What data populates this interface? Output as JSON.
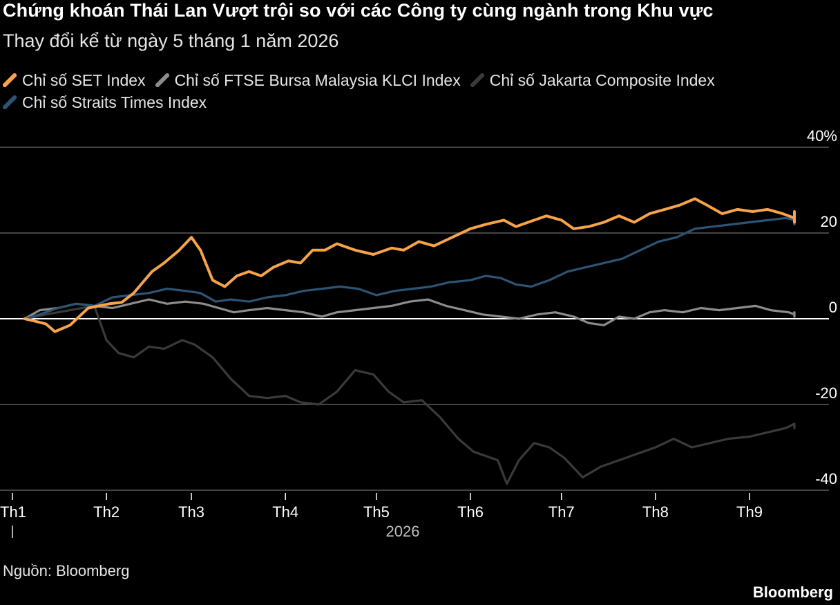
{
  "title": "Chứng khoán Thái Lan Vượt trội so với các Công ty cùng ngành trong Khu vực",
  "subtitle": "Thay đổi kể từ ngày 5 tháng 1 năm 2026",
  "source": "Nguồn: Bloomberg",
  "brand": "Bloomberg",
  "colors": {
    "background": "#000000",
    "grid": "#5c5c5c",
    "zero_line": "#ffffff",
    "text": "#e6e6e6"
  },
  "chart_data": {
    "type": "line",
    "xlabel": "2026",
    "ylabel": "",
    "ylim": [
      -40,
      40
    ],
    "y_ticks": [
      40,
      20,
      0,
      -20,
      -40
    ],
    "y_tick_labels": [
      "40%",
      "20",
      "0",
      "-20",
      "-40"
    ],
    "x_ticks": [
      "Th1",
      "Th2",
      "Th3",
      "Th4",
      "Th5",
      "Th6",
      "Th7",
      "Th8",
      "Th9"
    ],
    "x_tick_dates": [
      "2026-01-01",
      "2026-02-01",
      "2026-03-01",
      "2026-04-01",
      "2026-05-01",
      "2026-06-01",
      "2026-07-01",
      "2026-08-01",
      "2026-09-01"
    ],
    "xlim": [
      "2026-01-01",
      "2026-09-30"
    ],
    "grid": true,
    "legend_position": "top-left",
    "series": [
      {
        "name": "Chỉ số SET Index",
        "color": "#f6a34a",
        "points": [
          [
            "2026-01-05",
            0
          ],
          [
            "2026-01-08",
            -0.5
          ],
          [
            "2026-01-12",
            -1.2
          ],
          [
            "2026-01-15",
            -3
          ],
          [
            "2026-01-20",
            -1.5
          ],
          [
            "2026-01-26",
            2.5
          ],
          [
            "2026-02-02",
            3.5
          ],
          [
            "2026-02-06",
            3.8
          ],
          [
            "2026-02-10",
            6
          ],
          [
            "2026-02-16",
            11
          ],
          [
            "2026-02-20",
            13
          ],
          [
            "2026-02-25",
            16
          ],
          [
            "2026-03-01",
            19
          ],
          [
            "2026-03-04",
            16
          ],
          [
            "2026-03-08",
            9
          ],
          [
            "2026-03-12",
            7.5
          ],
          [
            "2026-03-16",
            10
          ],
          [
            "2026-03-20",
            11
          ],
          [
            "2026-03-24",
            10
          ],
          [
            "2026-03-28",
            12
          ],
          [
            "2026-04-02",
            13.5
          ],
          [
            "2026-04-06",
            13
          ],
          [
            "2026-04-10",
            16
          ],
          [
            "2026-04-14",
            16
          ],
          [
            "2026-04-18",
            17.5
          ],
          [
            "2026-04-24",
            16
          ],
          [
            "2026-04-30",
            15
          ],
          [
            "2026-05-06",
            16.5
          ],
          [
            "2026-05-10",
            16
          ],
          [
            "2026-05-15",
            18
          ],
          [
            "2026-05-20",
            17
          ],
          [
            "2026-05-26",
            19
          ],
          [
            "2026-06-01",
            21
          ],
          [
            "2026-06-06",
            22
          ],
          [
            "2026-06-12",
            23
          ],
          [
            "2026-06-16",
            21.5
          ],
          [
            "2026-06-20",
            22.5
          ],
          [
            "2026-06-26",
            24
          ],
          [
            "2026-07-01",
            23
          ],
          [
            "2026-07-05",
            21
          ],
          [
            "2026-07-10",
            21.5
          ],
          [
            "2026-07-15",
            22.5
          ],
          [
            "2026-07-20",
            24
          ],
          [
            "2026-07-25",
            22.5
          ],
          [
            "2026-07-30",
            24.5
          ],
          [
            "2026-08-04",
            25.5
          ],
          [
            "2026-08-09",
            26.5
          ],
          [
            "2026-08-14",
            28
          ],
          [
            "2026-08-18",
            26.5
          ],
          [
            "2026-08-23",
            24.5
          ],
          [
            "2026-08-28",
            25.5
          ],
          [
            "2026-09-02",
            25
          ],
          [
            "2026-09-07",
            25.5
          ],
          [
            "2026-09-12",
            24.5
          ],
          [
            "2026-09-17",
            23.5
          ],
          [
            "2026-09-20",
            22.5
          ],
          [
            "2026-09-23",
            25
          ],
          [
            "2026-09-27",
            24.5
          ],
          [
            "2026-09-30",
            23
          ]
        ]
      },
      {
        "name": "Chỉ số FTSE Bursa Malaysia KLCI Index",
        "color": "#8c8c8c",
        "points": [
          [
            "2026-01-05",
            0
          ],
          [
            "2026-01-10",
            2
          ],
          [
            "2026-01-16",
            2.5
          ],
          [
            "2026-01-22",
            3.5
          ],
          [
            "2026-01-28",
            3
          ],
          [
            "2026-02-03",
            2.5
          ],
          [
            "2026-02-09",
            3.5
          ],
          [
            "2026-02-15",
            4.5
          ],
          [
            "2026-02-21",
            3.5
          ],
          [
            "2026-02-27",
            4
          ],
          [
            "2026-03-05",
            3.5
          ],
          [
            "2026-03-10",
            2.5
          ],
          [
            "2026-03-15",
            1.5
          ],
          [
            "2026-03-20",
            2
          ],
          [
            "2026-03-26",
            2.5
          ],
          [
            "2026-04-01",
            2
          ],
          [
            "2026-04-07",
            1.5
          ],
          [
            "2026-04-13",
            0.5
          ],
          [
            "2026-04-18",
            1.5
          ],
          [
            "2026-04-24",
            2
          ],
          [
            "2026-04-30",
            2.5
          ],
          [
            "2026-05-06",
            3
          ],
          [
            "2026-05-12",
            4
          ],
          [
            "2026-05-18",
            4.5
          ],
          [
            "2026-05-24",
            3
          ],
          [
            "2026-05-30",
            2
          ],
          [
            "2026-06-05",
            1
          ],
          [
            "2026-06-11",
            0.5
          ],
          [
            "2026-06-17",
            0
          ],
          [
            "2026-06-23",
            1
          ],
          [
            "2026-06-29",
            1.5
          ],
          [
            "2026-07-05",
            0.5
          ],
          [
            "2026-07-10",
            -1
          ],
          [
            "2026-07-15",
            -1.5
          ],
          [
            "2026-07-20",
            0.5
          ],
          [
            "2026-07-25",
            0
          ],
          [
            "2026-07-30",
            1.5
          ],
          [
            "2026-08-04",
            2
          ],
          [
            "2026-08-10",
            1.5
          ],
          [
            "2026-08-16",
            2.5
          ],
          [
            "2026-08-22",
            2
          ],
          [
            "2026-08-28",
            2.5
          ],
          [
            "2026-09-03",
            3
          ],
          [
            "2026-09-08",
            2
          ],
          [
            "2026-09-14",
            1.5
          ],
          [
            "2026-09-20",
            1
          ],
          [
            "2026-09-25",
            1.5
          ],
          [
            "2026-09-30",
            0.5
          ]
        ]
      },
      {
        "name": "Chỉ số Jakarta Composite Index",
        "color": "#3a3a3a",
        "points": [
          [
            "2026-01-05",
            0
          ],
          [
            "2026-01-12",
            1
          ],
          [
            "2026-01-20",
            2
          ],
          [
            "2026-01-28",
            3
          ],
          [
            "2026-02-01",
            -5
          ],
          [
            "2026-02-05",
            -8
          ],
          [
            "2026-02-10",
            -9
          ],
          [
            "2026-02-15",
            -6.5
          ],
          [
            "2026-02-20",
            -7
          ],
          [
            "2026-02-26",
            -5
          ],
          [
            "2026-03-02",
            -6
          ],
          [
            "2026-03-08",
            -9
          ],
          [
            "2026-03-14",
            -14
          ],
          [
            "2026-03-20",
            -18
          ],
          [
            "2026-03-26",
            -18.5
          ],
          [
            "2026-04-01",
            -18
          ],
          [
            "2026-04-06",
            -19.5
          ],
          [
            "2026-04-12",
            -20
          ],
          [
            "2026-04-18",
            -17
          ],
          [
            "2026-04-24",
            -12
          ],
          [
            "2026-04-30",
            -13
          ],
          [
            "2026-05-05",
            -17
          ],
          [
            "2026-05-10",
            -19.5
          ],
          [
            "2026-05-16",
            -19
          ],
          [
            "2026-05-22",
            -23
          ],
          [
            "2026-05-28",
            -28
          ],
          [
            "2026-06-02",
            -31
          ],
          [
            "2026-06-06",
            -32
          ],
          [
            "2026-06-10",
            -33
          ],
          [
            "2026-06-13",
            -38.5
          ],
          [
            "2026-06-17",
            -33
          ],
          [
            "2026-06-22",
            -29
          ],
          [
            "2026-06-27",
            -30
          ],
          [
            "2026-07-02",
            -32.5
          ],
          [
            "2026-07-08",
            -37
          ],
          [
            "2026-07-14",
            -34.5
          ],
          [
            "2026-07-20",
            -33
          ],
          [
            "2026-07-26",
            -31.5
          ],
          [
            "2026-08-01",
            -30
          ],
          [
            "2026-08-07",
            -28
          ],
          [
            "2026-08-13",
            -30
          ],
          [
            "2026-08-19",
            -29
          ],
          [
            "2026-08-25",
            -28
          ],
          [
            "2026-09-01",
            -27.5
          ],
          [
            "2026-09-07",
            -26.5
          ],
          [
            "2026-09-13",
            -25.5
          ],
          [
            "2026-09-19",
            -24.5
          ],
          [
            "2026-09-25",
            -25
          ],
          [
            "2026-09-30",
            -25.5
          ]
        ]
      },
      {
        "name": "Chỉ số Straits Times Index",
        "color": "#2c5475",
        "points": [
          [
            "2026-01-05",
            0
          ],
          [
            "2026-01-10",
            1
          ],
          [
            "2026-01-16",
            2.5
          ],
          [
            "2026-01-22",
            3.5
          ],
          [
            "2026-01-28",
            3
          ],
          [
            "2026-02-03",
            5
          ],
          [
            "2026-02-09",
            5.5
          ],
          [
            "2026-02-15",
            6
          ],
          [
            "2026-02-21",
            7
          ],
          [
            "2026-02-27",
            6.5
          ],
          [
            "2026-03-04",
            6
          ],
          [
            "2026-03-09",
            4
          ],
          [
            "2026-03-14",
            4.5
          ],
          [
            "2026-03-20",
            4
          ],
          [
            "2026-03-26",
            5
          ],
          [
            "2026-04-01",
            5.5
          ],
          [
            "2026-04-07",
            6.5
          ],
          [
            "2026-04-13",
            7
          ],
          [
            "2026-04-19",
            7.5
          ],
          [
            "2026-04-25",
            7
          ],
          [
            "2026-05-01",
            5.5
          ],
          [
            "2026-05-07",
            6.5
          ],
          [
            "2026-05-13",
            7
          ],
          [
            "2026-05-19",
            7.5
          ],
          [
            "2026-05-25",
            8.5
          ],
          [
            "2026-06-01",
            9
          ],
          [
            "2026-06-06",
            10
          ],
          [
            "2026-06-11",
            9.5
          ],
          [
            "2026-06-16",
            8
          ],
          [
            "2026-06-21",
            7.5
          ],
          [
            "2026-06-27",
            9
          ],
          [
            "2026-07-03",
            11
          ],
          [
            "2026-07-09",
            12
          ],
          [
            "2026-07-15",
            13
          ],
          [
            "2026-07-21",
            14
          ],
          [
            "2026-07-27",
            16
          ],
          [
            "2026-08-02",
            18
          ],
          [
            "2026-08-08",
            19
          ],
          [
            "2026-08-14",
            21
          ],
          [
            "2026-08-20",
            21.5
          ],
          [
            "2026-08-26",
            22
          ],
          [
            "2026-09-01",
            22.5
          ],
          [
            "2026-09-07",
            23
          ],
          [
            "2026-09-13",
            23.5
          ],
          [
            "2026-09-19",
            23
          ],
          [
            "2026-09-25",
            22.5
          ],
          [
            "2026-09-30",
            22
          ]
        ]
      }
    ]
  }
}
